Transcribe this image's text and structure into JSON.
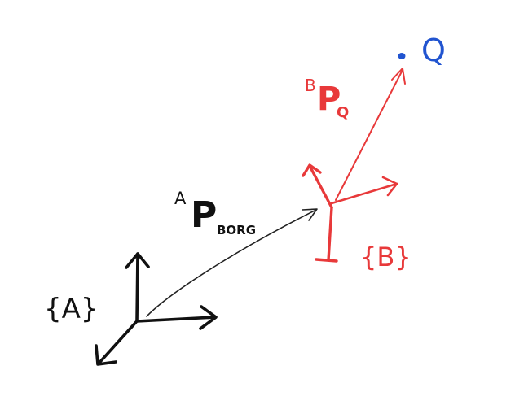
{
  "frames": {
    "A": {
      "label": "{A}"
    },
    "B": {
      "label": "{B}"
    }
  },
  "vectors": {
    "a_p_borg": {
      "superscript": "A",
      "main": "P",
      "subscript": "BORG"
    },
    "b_p_q": {
      "superscript": "B",
      "main": "P",
      "subscript": "Q"
    }
  },
  "point_q": {
    "label": "Q"
  },
  "colors": {
    "frame_a": "#111111",
    "frame_b": "#e8393a",
    "point_q": "#2154d0",
    "translation_arrow": "#222222",
    "pq_arrow": "#e8393a"
  }
}
